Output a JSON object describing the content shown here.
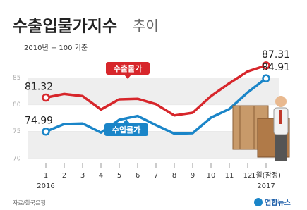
{
  "chart_data": {
    "type": "line",
    "title": "수출입물가지수",
    "title_suffix": "추이",
    "subtitle": "2010년 = 100 기준",
    "categories": [
      "1",
      "2",
      "3",
      "4",
      "5",
      "6",
      "7",
      "8",
      "9",
      "10",
      "11",
      "12",
      "1월(잠정)"
    ],
    "x_year_labels": [
      "2016",
      null,
      null,
      null,
      null,
      null,
      null,
      null,
      null,
      null,
      null,
      null,
      "2017"
    ],
    "series": [
      {
        "name": "수출물가",
        "color": "#d7262b",
        "values": [
          81.32,
          82.0,
          81.6,
          79.1,
          81.0,
          81.1,
          80.1,
          78.0,
          78.5,
          81.6,
          84.0,
          86.2,
          87.31
        ]
      },
      {
        "name": "수입물가",
        "color": "#1a85c8",
        "values": [
          74.99,
          76.4,
          76.5,
          74.8,
          77.2,
          77.9,
          76.2,
          74.6,
          74.7,
          77.6,
          79.2,
          82.3,
          84.91
        ]
      }
    ],
    "ylim": [
      68,
      89
    ],
    "yticks": [
      70,
      75,
      80,
      85
    ],
    "grid": true,
    "source": "자료/한국은행",
    "logo": "연합뉴스"
  }
}
